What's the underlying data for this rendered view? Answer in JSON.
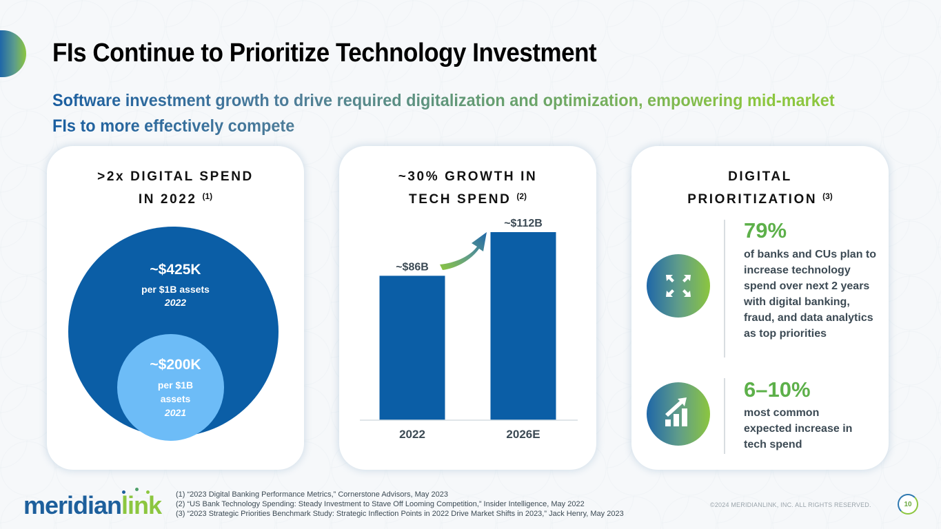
{
  "slide": {
    "title": "FIs Continue to Prioritize Technology Investment",
    "subtitle": "Software investment growth to drive required digitalization and optimization, empowering mid-market FIs to more effectively compete"
  },
  "colors": {
    "brand_blue": "#0b5ea6",
    "light_blue": "#6dbcf7",
    "brand_green": "#8cc63f",
    "stat_green": "#5db04a",
    "text_dark": "#3c4a54"
  },
  "card_digital_spend": {
    "title_line1": ">2x DIGITAL SPEND",
    "title_line2": "IN 2022",
    "footnote_ref": "(1)",
    "outer": {
      "value": "~$425K",
      "desc": "per $1B assets",
      "year": "2022"
    },
    "inner": {
      "value": "~$200K",
      "desc_line1": "per $1B",
      "desc_line2": "assets",
      "year": "2021"
    }
  },
  "card_tech_spend": {
    "title_line1": "~30% GROWTH IN",
    "title_line2": "TECH SPEND",
    "footnote_ref": "(2)"
  },
  "chart_data": {
    "type": "bar",
    "title": "~30% GROWTH IN TECH SPEND (2)",
    "categories": [
      "2022",
      "2026E"
    ],
    "values": [
      86,
      112
    ],
    "data_labels": [
      "~$86B",
      "~$112B"
    ],
    "units": "USD billions",
    "xlabel": "",
    "ylabel": "",
    "ylim": [
      0,
      112
    ],
    "grid": false,
    "annotation": "growth arrow from 2022 to 2026E"
  },
  "card_prioritization": {
    "title_line1": "DIGITAL",
    "title_line2": "PRIORITIZATION",
    "footnote_ref": "(3)",
    "stats": [
      {
        "icon": "expand-arrows-icon",
        "value": "79%",
        "desc": "of banks and CUs plan to increase technology spend over next 2 years with digital banking, fraud, and data analytics as top priorities"
      },
      {
        "icon": "growth-chart-icon",
        "value": "6–10%",
        "desc": "most common expected increase in tech spend"
      }
    ]
  },
  "footer": {
    "logo_part1": "meridian",
    "logo_part2": "link",
    "footnotes": [
      "(1) “2023 Digital Banking Performance Metrics,” Cornerstone Advisors, May 2023",
      "(2) “US Bank Technology Spending: Steady Investment to Stave Off Looming Competition,” Insider Intelligence, May 2022",
      "(3) “2023 Strategic Priorities Benchmark Study: Strategic Inflection Points in 2022 Drive Market Shifts in 2023,” Jack Henry, May 2023"
    ],
    "copyright": "©2024 MERIDIANLINK, INC. ALL RIGHTS RESERVED.",
    "page_number": "10"
  }
}
